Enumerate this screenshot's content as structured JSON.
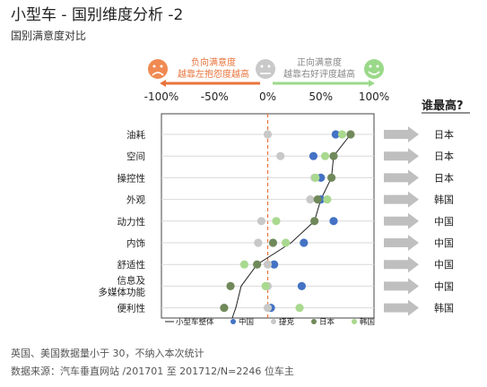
{
  "page": {
    "title": "小型车 - 国别维度分析 -2",
    "subtitle": "国别满意度对比",
    "footnotes": [
      "英国、美国数据量小于 30，不纳入本次统计",
      "数据来源：汽车垂直网站 /201701 至 201712/N=2246 位车主"
    ]
  },
  "scale_header": {
    "negative_label_1": "负向满意度",
    "negative_label_2": "越靠左抱怨度越高",
    "positive_label_1": "正向满意度",
    "positive_label_2": "越靠右好评度越高",
    "sad_face_icon": "sad-face-icon",
    "neutral_face_icon": "neutral-face-icon",
    "happy_face_icon": "happy-face-icon",
    "negative_color": "#e8743b",
    "neutral_color": "#c9c9c9",
    "positive_color": "#9bd98a"
  },
  "result_column": {
    "title": "谁最高?",
    "winners": [
      "日本",
      "日本",
      "日本",
      "韩国",
      "中国",
      "中国",
      "中国",
      "中国",
      "韩国"
    ],
    "arrow_color": "#bfbfbf"
  },
  "chart_data": {
    "type": "scatter",
    "xlim": [
      -100,
      100
    ],
    "xticks": [
      -100,
      -50,
      0,
      50,
      100
    ],
    "xtick_labels": [
      "-100%",
      "-50%",
      "0%",
      "50%",
      "100%"
    ],
    "categories": [
      "油耗",
      "空间",
      "操控性",
      "外观",
      "动力性",
      "内饰",
      "舒适性",
      "信息及\n多媒体功能",
      "便利性"
    ],
    "series": [
      {
        "name": "小型车整体",
        "color": "#222222",
        "kind": "line",
        "values": [
          78,
          62,
          60,
          50,
          44,
          22,
          -10,
          -25,
          -30
        ]
      },
      {
        "name": "中国",
        "color": "#4472c4",
        "kind": "point",
        "values": [
          64,
          43,
          50,
          50,
          62,
          34,
          6,
          32,
          3
        ]
      },
      {
        "name": "捷克",
        "color": "#c8c8c8",
        "kind": "point",
        "values": [
          0,
          12,
          44,
          40,
          -6,
          -9,
          0,
          0,
          0
        ]
      },
      {
        "name": "日本",
        "color": "#70895a",
        "kind": "point",
        "values": [
          78,
          62,
          60,
          47,
          44,
          5,
          -10,
          -35,
          -41
        ]
      },
      {
        "name": "韩国",
        "color": "#a9d98f",
        "kind": "point",
        "values": [
          70,
          54,
          45,
          56,
          8,
          17,
          -22,
          -2,
          30
        ]
      }
    ],
    "zero_line_color": "#e8743b"
  }
}
